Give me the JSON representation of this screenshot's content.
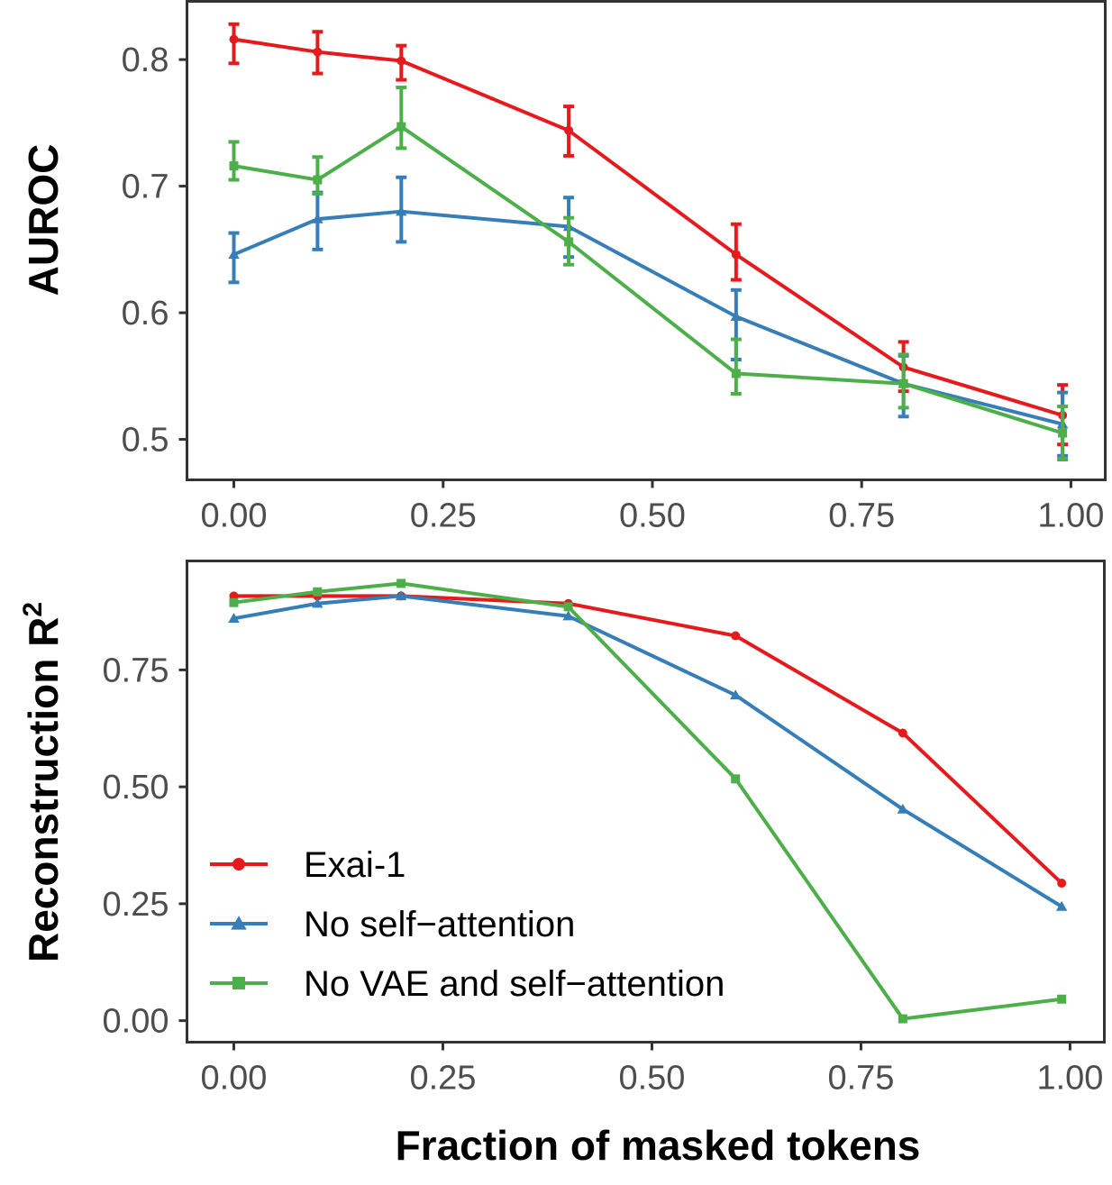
{
  "chart_data": [
    {
      "type": "line",
      "panel": "top",
      "title": "",
      "xlabel": "",
      "ylabel": "AUROC",
      "xlim": [
        -0.056,
        1.041
      ],
      "ylim": [
        0.468,
        0.846
      ],
      "x_ticks": [
        0.0,
        0.25,
        0.5,
        0.75,
        1.0
      ],
      "x_tick_labels": [
        "0.00",
        "0.25",
        "0.50",
        "0.75",
        "1.00"
      ],
      "y_ticks": [
        0.5,
        0.6,
        0.7,
        0.8
      ],
      "y_tick_labels": [
        "0.5",
        "0.6",
        "0.7",
        "0.8"
      ],
      "grid": false,
      "error_bars": true,
      "x": [
        0.0,
        0.1,
        0.2,
        0.4,
        0.6,
        0.8,
        0.99
      ],
      "series": [
        {
          "name": "Exai-1",
          "color": "#e41a1c",
          "marker": "circle",
          "values": [
            0.816,
            0.806,
            0.799,
            0.744,
            0.646,
            0.557,
            0.519
          ],
          "err_low": [
            0.797,
            0.789,
            0.784,
            0.724,
            0.626,
            0.538,
            0.496
          ],
          "err_high": [
            0.828,
            0.822,
            0.811,
            0.763,
            0.67,
            0.577,
            0.543
          ]
        },
        {
          "name": "No self−attention",
          "color": "#377eb8",
          "marker": "triangle",
          "values": [
            0.646,
            0.674,
            0.68,
            0.668,
            0.597,
            0.544,
            0.512
          ],
          "err_low": [
            0.624,
            0.65,
            0.656,
            0.644,
            0.563,
            0.518,
            0.487
          ],
          "err_high": [
            0.663,
            0.695,
            0.707,
            0.691,
            0.618,
            0.566,
            0.537
          ]
        },
        {
          "name": "No VAE and self−attention",
          "color": "#4daf4a",
          "marker": "square",
          "values": [
            0.716,
            0.705,
            0.747,
            0.656,
            0.552,
            0.544,
            0.505
          ],
          "err_low": [
            0.705,
            0.694,
            0.73,
            0.638,
            0.536,
            0.525,
            0.484
          ],
          "err_high": [
            0.735,
            0.723,
            0.778,
            0.675,
            0.579,
            0.567,
            0.526
          ]
        }
      ]
    },
    {
      "type": "line",
      "panel": "bottom",
      "title": "",
      "xlabel": "Fraction of masked tokens",
      "ylabel": "Reconstruction R²",
      "ylabel_main": "Reconstruction R",
      "ylabel_superscript": "2",
      "xlim": [
        -0.056,
        1.041
      ],
      "ylim": [
        -0.046,
        0.983
      ],
      "x_ticks": [
        0.0,
        0.25,
        0.5,
        0.75,
        1.0
      ],
      "x_tick_labels": [
        "0.00",
        "0.25",
        "0.50",
        "0.75",
        "1.00"
      ],
      "y_ticks": [
        0.0,
        0.25,
        0.5,
        0.75
      ],
      "y_tick_labels": [
        "0.00",
        "0.25",
        "0.50",
        "0.75"
      ],
      "grid": false,
      "legend_position": "bottom-left (inside)",
      "x": [
        0.0,
        0.1,
        0.2,
        0.4,
        0.6,
        0.8,
        0.99
      ],
      "series": [
        {
          "name": "Exai-1",
          "color": "#e41a1c",
          "marker": "circle",
          "values": [
            0.908,
            0.908,
            0.908,
            0.892,
            0.823,
            0.615,
            0.294
          ]
        },
        {
          "name": "No self−attention",
          "color": "#377eb8",
          "marker": "triangle",
          "values": [
            0.86,
            0.892,
            0.908,
            0.865,
            0.696,
            0.452,
            0.244
          ]
        },
        {
          "name": "No VAE and self−attention",
          "color": "#4daf4a",
          "marker": "square",
          "values": [
            0.894,
            0.917,
            0.935,
            0.885,
            0.517,
            0.004,
            0.046
          ]
        }
      ]
    }
  ],
  "legend": {
    "items": [
      {
        "label": "Exai-1",
        "color": "#e41a1c",
        "marker": "circle"
      },
      {
        "label": "No self−attention",
        "color": "#377eb8",
        "marker": "triangle"
      },
      {
        "label": "No VAE and self−attention",
        "color": "#4daf4a",
        "marker": "square"
      }
    ]
  }
}
